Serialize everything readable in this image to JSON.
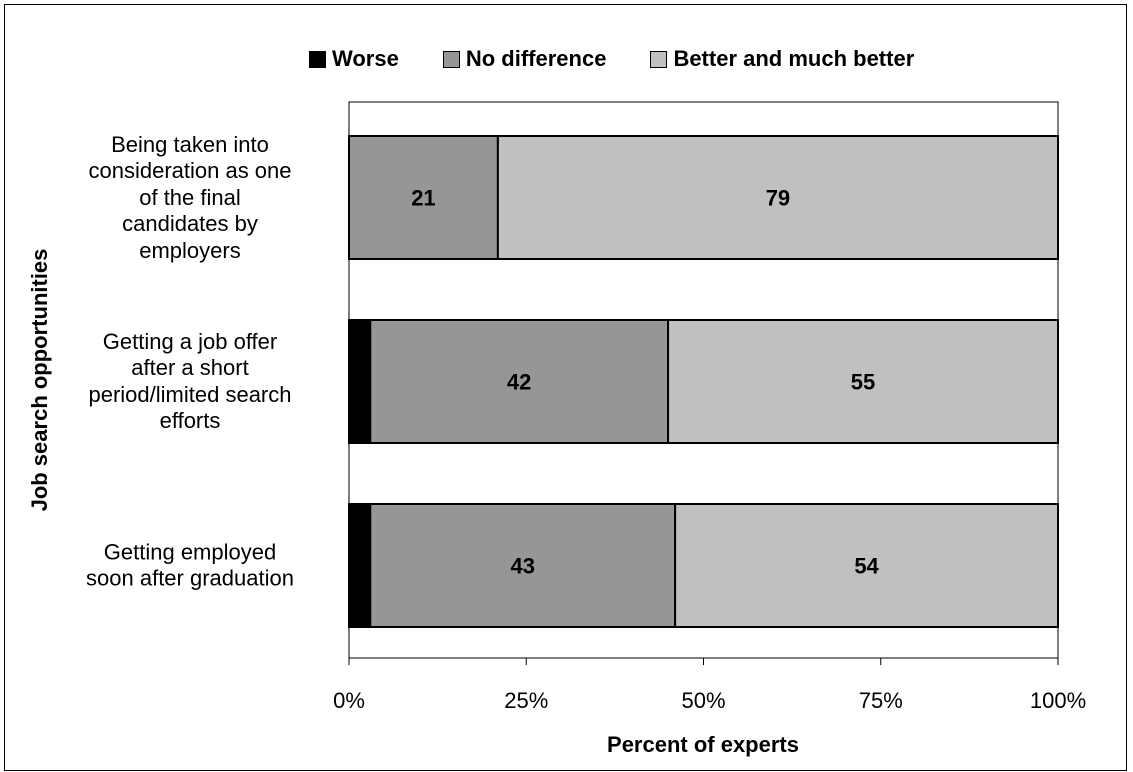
{
  "chart_data": {
    "type": "bar",
    "orientation": "horizontal",
    "stacked": true,
    "categories": [
      "Being taken into consideration as one of the final candidates by employers",
      "Getting a job offer after a short period/limited search efforts",
      "Getting employed soon after graduation"
    ],
    "category_lines": [
      [
        "Being taken into",
        "consideration as one",
        "of the final",
        "candidates by",
        "employers"
      ],
      [
        "Getting a job offer",
        "after a short",
        "period/limited search",
        "efforts"
      ],
      [
        "Getting employed",
        "soon after graduation"
      ]
    ],
    "series": [
      {
        "name": "Worse",
        "values": [
          0,
          3,
          3
        ],
        "labels": [
          "",
          "",
          ""
        ],
        "color": "#000000"
      },
      {
        "name": "No difference",
        "values": [
          21,
          42,
          43
        ],
        "labels": [
          "21",
          "42",
          "43"
        ],
        "color": "#969696"
      },
      {
        "name": "Better and much better",
        "values": [
          79,
          55,
          54
        ],
        "labels": [
          "79",
          "55",
          "54"
        ],
        "color": "#c0c0c0"
      }
    ],
    "xlabel": "Percent of experts",
    "ylabel": "Job search opportunities",
    "xlim": [
      0,
      100
    ],
    "x_ticks": [
      0,
      25,
      50,
      75,
      100
    ],
    "x_tick_labels": [
      "0%",
      "25%",
      "50%",
      "75%",
      "100%"
    ],
    "legend_position": "top",
    "grid": false
  }
}
